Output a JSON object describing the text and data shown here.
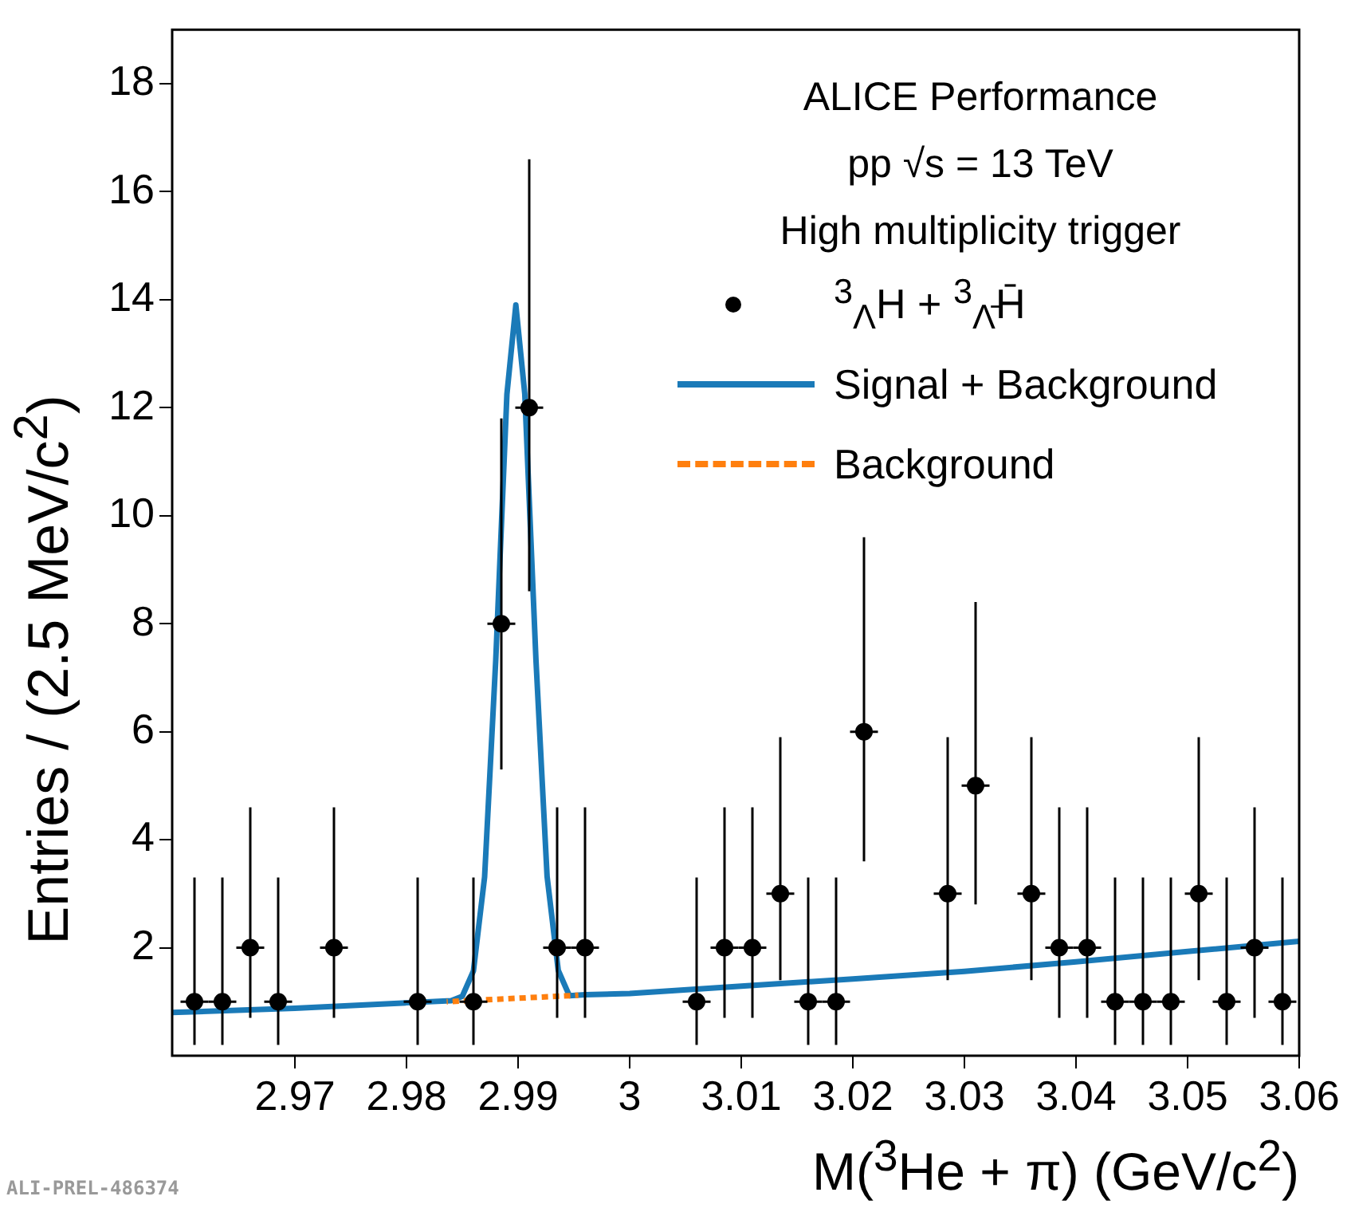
{
  "chart_data": {
    "type": "scatter",
    "xlabel": "M($^{3}$He + π) (GeV/c$^{2}$)",
    "ylabel": "Entries / (2.5 MeV/c$^{2}$)",
    "xlim": [
      2.959,
      3.06
    ],
    "ylim": [
      0,
      19
    ],
    "xticks": [
      2.97,
      2.98,
      2.99,
      3,
      3.01,
      3.02,
      3.03,
      3.04,
      3.05,
      3.06
    ],
    "yticks": [
      2,
      4,
      6,
      8,
      10,
      12,
      14,
      16,
      18
    ],
    "grid": false,
    "legend": "top right",
    "annotations": [
      "ALICE Performance",
      "pp √s = 13 TeV",
      "High multiplicity trigger",
      "ALI-PREL-486374"
    ],
    "series": [
      {
        "name": "$^{3}$$_{Λ}$H + $^{3}$$_{Λ̄}$H̄",
        "color": "#000000",
        "marker": "circle",
        "x": [
          2.961,
          2.9635,
          2.966,
          2.9685,
          2.9735,
          2.981,
          2.986,
          2.9885,
          2.991,
          2.9935,
          2.996,
          3.006,
          3.0085,
          3.011,
          3.0135,
          3.016,
          3.0185,
          3.021,
          3.0285,
          3.031,
          3.036,
          3.0385,
          3.041,
          3.0435,
          3.046,
          3.0485,
          3.051,
          3.0535,
          3.056,
          3.0585
        ],
        "values": [
          1,
          1,
          2,
          1,
          2,
          1,
          1,
          8,
          12,
          2,
          2,
          1,
          2,
          2,
          3,
          1,
          1,
          6,
          3,
          5,
          3,
          2,
          2,
          1,
          1,
          1,
          3,
          1,
          2,
          1
        ],
        "errors": [
          [
            0.2,
            3.3
          ],
          [
            0.2,
            3.3
          ],
          [
            0.7,
            4.6
          ],
          [
            0.2,
            3.3
          ],
          [
            0.7,
            4.6
          ],
          [
            0.2,
            3.3
          ],
          [
            0.2,
            3.3
          ],
          [
            5.3,
            11.8
          ],
          [
            8.6,
            16.6
          ],
          [
            0.7,
            4.6
          ],
          [
            0.7,
            4.6
          ],
          [
            0.2,
            3.3
          ],
          [
            0.7,
            4.6
          ],
          [
            0.7,
            4.6
          ],
          [
            1.4,
            5.9
          ],
          [
            0.2,
            3.3
          ],
          [
            0.2,
            3.3
          ],
          [
            3.6,
            9.6
          ],
          [
            1.4,
            5.9
          ],
          [
            2.8,
            8.4
          ],
          [
            1.4,
            5.9
          ],
          [
            0.7,
            4.6
          ],
          [
            0.7,
            4.6
          ],
          [
            0.2,
            3.3
          ],
          [
            0.2,
            3.3
          ],
          [
            0.2,
            3.3
          ],
          [
            1.4,
            5.9
          ],
          [
            0.2,
            3.3
          ],
          [
            0.7,
            4.6
          ],
          [
            0.2,
            3.3
          ]
        ],
        "xerrors": [
          0.00125,
          0.00125,
          0.00125,
          0.00125,
          0.00125,
          0.00125,
          0.00125,
          0.00125,
          0.00125,
          0.00125,
          0.00125,
          0.00125,
          0.00125,
          0.00125,
          0.00125,
          0.00125,
          0.00125,
          0.00125,
          0.00125,
          0.00125,
          0.00125,
          0.00125,
          0.00125,
          0.00125,
          0.00125,
          0.00125,
          0.00125,
          0.00125,
          0.00125,
          0.00125
        ]
      },
      {
        "type": "line",
        "name": "Signal + Background",
        "color": "#1a7ab8",
        "marker": "none",
        "line_style": "solid",
        "x": [
          2.959,
          2.97,
          2.98,
          2.984,
          2.985,
          2.986,
          2.987,
          2.988,
          2.989,
          2.9898,
          2.9906,
          2.9916,
          2.9926,
          2.9936,
          2.9946,
          2.996,
          3,
          3.01,
          3.02,
          3.03,
          3.04,
          3.05,
          3.06
        ],
        "values": [
          0.8,
          0.88,
          0.98,
          1.02,
          1.1,
          1.57,
          3.31,
          7.33,
          12.25,
          13.9,
          12.26,
          7.34,
          3.32,
          1.58,
          1.11,
          1.13,
          1.15,
          1.29,
          1.42,
          1.56,
          1.74,
          1.93,
          2.12
        ]
      },
      {
        "type": "line",
        "name": "Background",
        "color": "#ff7f0e",
        "marker": "none",
        "line_style": "dashed",
        "x": [
          2.9836,
          2.9954
        ],
        "values": [
          1.0,
          1.12
        ]
      }
    ]
  }
}
